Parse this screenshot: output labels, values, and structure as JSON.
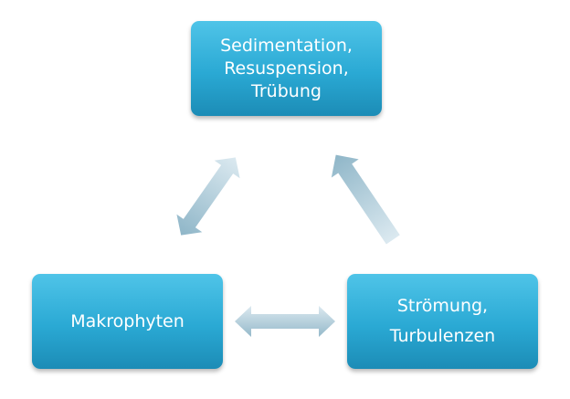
{
  "nodes": {
    "top": {
      "line1": "Sedimentation,",
      "line2": "Resuspension,",
      "line3": "Trübung"
    },
    "left": {
      "line1": "Makrophyten"
    },
    "right": {
      "line1": "Strömung,",
      "line2": "Turbulenzen"
    }
  },
  "colors": {
    "node_fill_top": "#4fc4e8",
    "node_fill_mid": "#2aa9d4",
    "node_fill_bottom": "#1c8cb6",
    "node_text": "#ffffff",
    "arrow_light": "#d9e8ef",
    "arrow_dark": "#93b9ca"
  },
  "arrows": [
    {
      "id": "top-left",
      "from": "top",
      "to": "left",
      "style": "double-headed"
    },
    {
      "id": "right-top",
      "from": "right",
      "to": "top",
      "style": "single-headed"
    },
    {
      "id": "left-right",
      "from": "left",
      "to": "right",
      "style": "double-headed"
    }
  ]
}
